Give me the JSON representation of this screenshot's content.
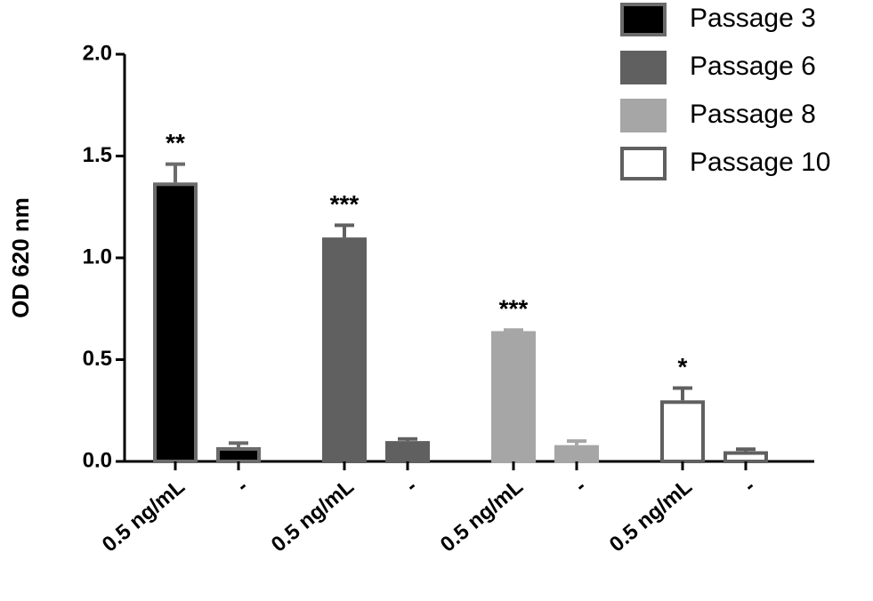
{
  "chart_data": {
    "type": "bar",
    "ylabel": "OD 620 nm",
    "categories": [
      "0.5 ng/mL",
      "-"
    ],
    "ylim": [
      0,
      2
    ],
    "yticks": [
      {
        "value": 0,
        "label": "0.0"
      },
      {
        "value": 0.5,
        "label": "0.5"
      },
      {
        "value": 1,
        "label": "1.0"
      },
      {
        "value": 1.5,
        "label": "1.5"
      },
      {
        "value": 2,
        "label": "2.0"
      }
    ],
    "legend": "top-right",
    "series": [
      {
        "name": "Passage 3",
        "color": "#000000",
        "edge": "#6b6b6b",
        "values": [
          1.37,
          0.07
        ],
        "errors": [
          0.09,
          0.02
        ],
        "significance": "**"
      },
      {
        "name": "Passage 6",
        "color": "#606060",
        "edge": "#606060",
        "values": [
          1.1,
          0.1
        ],
        "errors": [
          0.06,
          0.01
        ],
        "significance": "***"
      },
      {
        "name": "Passage 8",
        "color": "#a6a6a6",
        "edge": "#a6a6a6",
        "values": [
          0.64,
          0.08
        ],
        "errors": [
          0.005,
          0.02
        ],
        "significance": "***"
      },
      {
        "name": "Passage 10",
        "color": "#ffffff",
        "edge": "#606060",
        "values": [
          0.3,
          0.05
        ],
        "errors": [
          0.06,
          0.01
        ],
        "significance": "*"
      }
    ]
  }
}
